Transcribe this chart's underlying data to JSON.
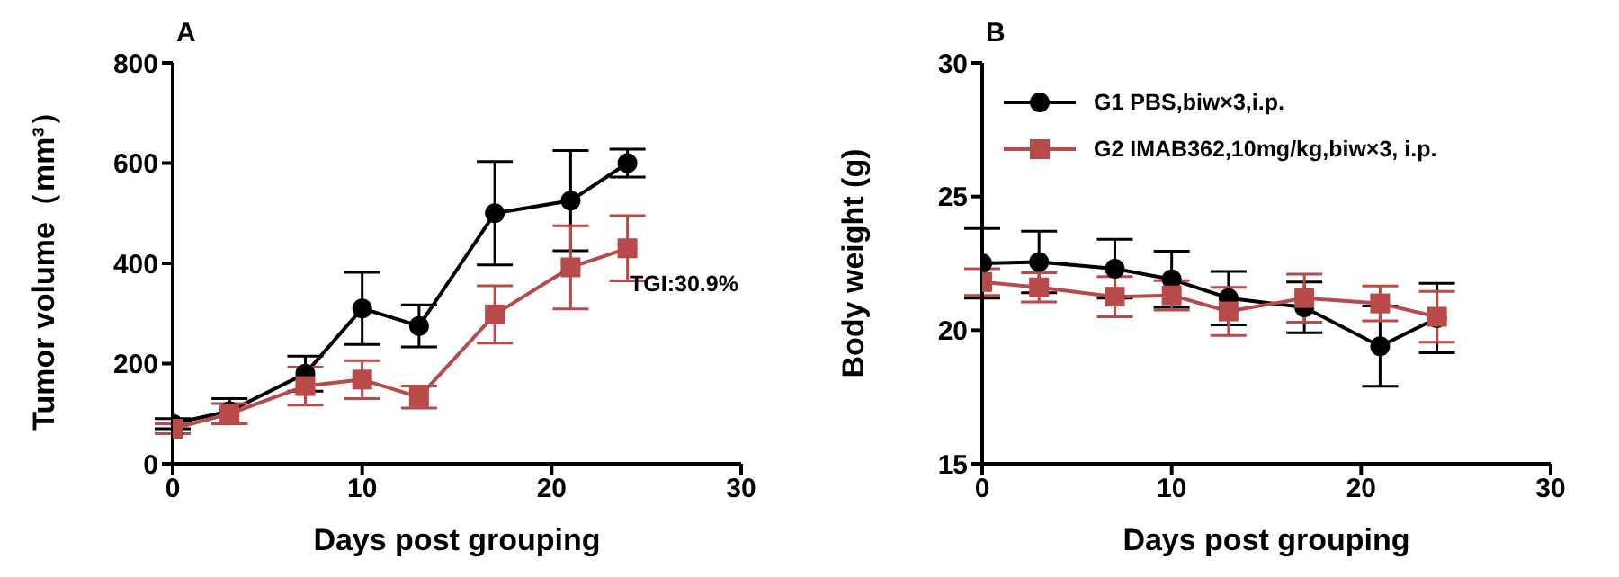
{
  "chart_data": [
    {
      "type": "line",
      "title": "A",
      "xlabel": "Days post grouping",
      "ylabel": "Tumor volume（mm³）",
      "x": [
        0,
        3,
        7,
        10,
        13,
        17,
        21,
        24
      ],
      "xlim": [
        0,
        30
      ],
      "xticks": [
        0,
        10,
        20,
        30
      ],
      "ylim": [
        0,
        800
      ],
      "yticks": [
        0,
        200,
        400,
        600,
        800
      ],
      "grid": false,
      "legend": false,
      "annotations": [
        "TGI:30.9%"
      ],
      "series": [
        {
          "color": "#000000",
          "marker": "circle",
          "values": [
            80,
            105,
            180,
            310,
            275,
            500,
            525,
            600
          ],
          "errors": [
            10,
            25,
            35,
            72,
            42,
            103,
            100,
            28
          ]
        },
        {
          "color": "#b84a4a",
          "marker": "square",
          "values": [
            70,
            100,
            155,
            168,
            133,
            298,
            392,
            430
          ],
          "errors": [
            10,
            20,
            38,
            38,
            22,
            57,
            83,
            65
          ]
        }
      ]
    },
    {
      "type": "line",
      "title": "B",
      "xlabel": "Days post grouping",
      "ylabel": "Body weight (g)",
      "x": [
        0,
        3,
        7,
        10,
        13,
        17,
        21,
        24
      ],
      "xlim": [
        0,
        30
      ],
      "xticks": [
        0,
        10,
        20,
        30
      ],
      "ylim": [
        15,
        30
      ],
      "yticks": [
        15,
        20,
        25,
        30
      ],
      "grid": false,
      "legend": "top left",
      "series": [
        {
          "name": "G1 PBS,biw×3,i.p.",
          "color": "#000000",
          "marker": "circle",
          "values": [
            22.5,
            22.55,
            22.3,
            21.9,
            21.2,
            20.85,
            19.4,
            20.45
          ],
          "errors": [
            1.3,
            1.15,
            1.1,
            1.05,
            1.0,
            0.95,
            1.5,
            1.3
          ]
        },
        {
          "name": "G2 IMAB362,10mg/kg,biw×3, i.p.",
          "color": "#b84a4a",
          "marker": "square",
          "values": [
            21.8,
            21.6,
            21.25,
            21.3,
            20.7,
            21.2,
            21.0,
            20.5
          ],
          "errors": [
            0.5,
            0.55,
            0.75,
            0.55,
            0.9,
            0.9,
            0.65,
            0.95
          ]
        }
      ]
    }
  ]
}
